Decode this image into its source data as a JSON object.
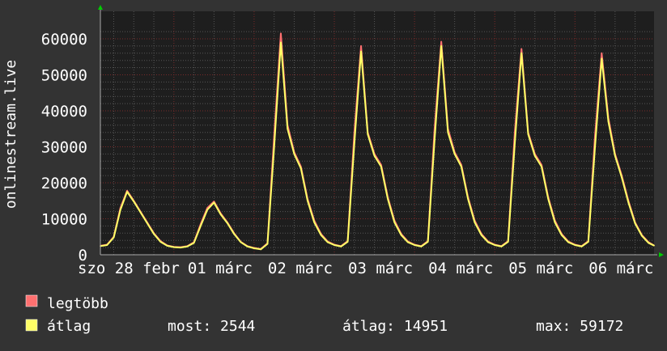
{
  "chart_data": {
    "type": "line",
    "ylabel": "onlinestream.live",
    "ylim": [
      0,
      60000
    ],
    "yticks": [
      "0",
      "10000",
      "20000",
      "30000",
      "40000",
      "50000",
      "60000"
    ],
    "xlim": [
      "02-28 02:00",
      "03-06 23:40"
    ],
    "xtick_labels": [
      "szo 28 febr",
      "01 márc",
      "02 márc",
      "03 márc",
      "04 márc",
      "05 márc",
      "06 márc"
    ],
    "grid": true,
    "colors": {
      "background": "#333333",
      "plot": "#1e1e1e",
      "grid_minor": "#555555",
      "grid_major": "#7a2a2a",
      "max": "#ff7070",
      "avg": "#ffff66",
      "arrow": "#00cc00"
    },
    "x": [
      "02-28 02:00",
      "02-28 04:00",
      "02-28 06:00",
      "02-28 08:00",
      "02-28 10:00",
      "02-28 12:00",
      "02-28 14:00",
      "02-28 16:00",
      "02-28 18:00",
      "02-28 20:00",
      "02-28 22:00",
      "03-01 00:00",
      "03-01 02:00",
      "03-01 04:00",
      "03-01 06:00",
      "03-01 08:00",
      "03-01 10:00",
      "03-01 12:00",
      "03-01 14:00",
      "03-01 16:00",
      "03-01 18:00",
      "03-01 20:00",
      "03-01 22:00",
      "03-02 00:00",
      "03-02 02:00",
      "03-02 04:00",
      "03-02 06:00",
      "03-02 08:00",
      "03-02 10:00",
      "03-02 12:00",
      "03-02 14:00",
      "03-02 16:00",
      "03-02 18:00",
      "03-02 20:00",
      "03-02 22:00",
      "03-03 00:00",
      "03-03 02:00",
      "03-03 04:00",
      "03-03 06:00",
      "03-03 08:00",
      "03-03 10:00",
      "03-03 12:00",
      "03-03 14:00",
      "03-03 16:00",
      "03-03 18:00",
      "03-03 20:00",
      "03-03 22:00",
      "03-04 00:00",
      "03-04 02:00",
      "03-04 04:00",
      "03-04 06:00",
      "03-04 08:00",
      "03-04 10:00",
      "03-04 12:00",
      "03-04 14:00",
      "03-04 16:00",
      "03-04 18:00",
      "03-04 20:00",
      "03-04 22:00",
      "03-05 00:00",
      "03-05 02:00",
      "03-05 04:00",
      "03-05 06:00",
      "03-05 08:00",
      "03-05 10:00",
      "03-05 12:00",
      "03-05 14:00",
      "03-05 16:00",
      "03-05 18:00",
      "03-05 20:00",
      "03-05 22:00",
      "03-06 00:00",
      "03-06 02:00",
      "03-06 04:00",
      "03-06 06:00",
      "03-06 08:00",
      "03-06 10:00",
      "03-06 12:00",
      "03-06 14:00",
      "03-06 16:00",
      "03-06 18:00",
      "03-06 20:00",
      "03-06 22:00",
      "03-06 23:40"
    ],
    "series": [
      {
        "name": "legtöbb",
        "values": [
          2500,
          2800,
          5000,
          13000,
          17800,
          15000,
          12000,
          9000,
          6000,
          3800,
          2600,
          2200,
          2100,
          2400,
          3500,
          8500,
          13000,
          14800,
          11500,
          9000,
          6000,
          3600,
          2400,
          1900,
          1600,
          3200,
          33000,
          61500,
          36000,
          28500,
          24500,
          15500,
          9500,
          5800,
          3700,
          2800,
          2400,
          3800,
          34000,
          58000,
          34000,
          28000,
          25000,
          16000,
          9500,
          5800,
          3700,
          2800,
          2400,
          3800,
          35000,
          59200,
          35000,
          28500,
          25000,
          16000,
          9500,
          5800,
          3700,
          2800,
          2400,
          3800,
          34000,
          57200,
          34000,
          28000,
          25000,
          16000,
          9500,
          5800,
          3700,
          2800,
          2400,
          3800,
          33000,
          56000,
          38000,
          28000,
          22000,
          15000,
          9000,
          5500,
          3500,
          2600
        ]
      },
      {
        "name": "átlag",
        "values": [
          2400,
          2700,
          4800,
          12500,
          17500,
          14800,
          11800,
          8800,
          5800,
          3600,
          2500,
          2100,
          2000,
          2300,
          3300,
          8000,
          12500,
          14500,
          11200,
          8800,
          5800,
          3500,
          2300,
          1800,
          1500,
          3000,
          30000,
          59000,
          35000,
          28000,
          24000,
          15000,
          9000,
          5500,
          3500,
          2700,
          2300,
          3600,
          31000,
          56500,
          33500,
          27500,
          24500,
          15500,
          9000,
          5500,
          3500,
          2700,
          2300,
          3600,
          32000,
          58000,
          34000,
          28000,
          24500,
          15500,
          9000,
          5500,
          3500,
          2700,
          2300,
          3600,
          31000,
          56000,
          33500,
          27500,
          24500,
          15500,
          9000,
          5500,
          3500,
          2700,
          2300,
          3600,
          30000,
          54500,
          37000,
          27500,
          21500,
          14500,
          8700,
          5300,
          3300,
          2544
        ]
      }
    ]
  },
  "legend": {
    "max_label": "legtöbb",
    "avg_label": "átlag",
    "now": "most: 2544",
    "average": "átlag: 14951",
    "maximum": "max: 59172"
  }
}
